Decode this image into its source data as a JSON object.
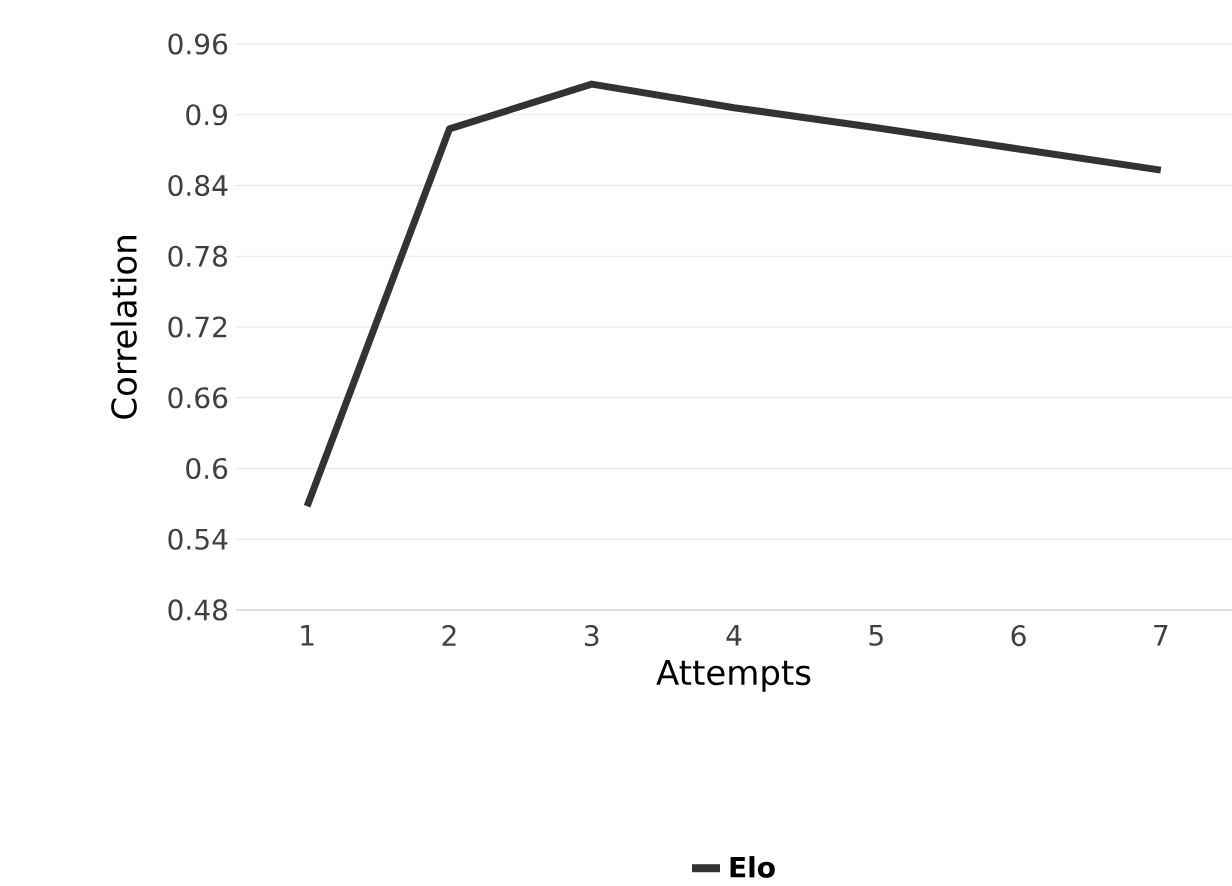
{
  "chart_data": {
    "type": "line",
    "xlabel": "Attempts",
    "ylabel": "Correlation",
    "categories": [
      "1",
      "2",
      "3",
      "4",
      "5",
      "6",
      "7"
    ],
    "series": [
      {
        "name": "Elo",
        "color": "#333333",
        "values": [
          0.568,
          0.888,
          0.926,
          0.906,
          0.889,
          0.871,
          0.853
        ]
      }
    ],
    "ylim": [
      0.48,
      0.96
    ],
    "yticks": [
      0.48,
      0.54,
      0.6,
      0.66,
      0.72,
      0.78,
      0.84,
      0.9,
      0.96
    ],
    "grid": "y",
    "legend": "bottom",
    "marker": "none",
    "line_style": "solid"
  }
}
